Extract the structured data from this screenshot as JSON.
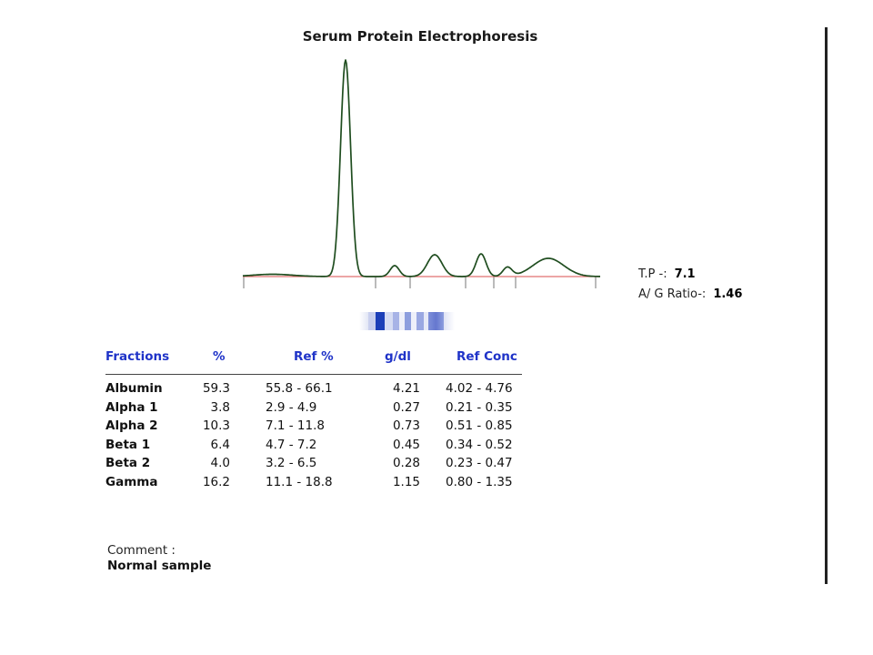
{
  "report": {
    "title": "Serum Protein Electrophoresis",
    "total_protein_label": "T.P -:",
    "total_protein_value": "7.1",
    "ag_ratio_label": "A/ G Ratio-:",
    "ag_ratio_value": "1.46",
    "comment_label": "Comment :",
    "comment_text": "Normal sample"
  },
  "table": {
    "headers": [
      "Fractions",
      "%",
      "Ref %",
      "g/dl",
      "Ref Conc"
    ],
    "rows": [
      [
        "Albumin",
        "59.3",
        "55.8 - 66.1",
        "4.21",
        "4.02 - 4.76"
      ],
      [
        "Alpha 1",
        "3.8",
        "2.9 -  4.9",
        "0.27",
        "0.21 - 0.35"
      ],
      [
        "Alpha 2",
        "10.3",
        "7.1 - 11.8",
        "0.73",
        "0.51 - 0.85"
      ],
      [
        "Beta 1",
        "6.4",
        "4.7 -  7.2",
        "0.45",
        "0.34 - 0.52"
      ],
      [
        "Beta 2",
        "4.0",
        "3.2 -  6.5",
        "0.28",
        "0.23 - 0.47"
      ],
      [
        "Gamma",
        "16.2",
        "11.1 - 18.8",
        "1.15",
        "0.80 - 1.35"
      ]
    ]
  },
  "colors": {
    "header_text": "#1f33c8",
    "trace": "#1f4d1f",
    "baseline": "#e07070",
    "strip_band": "#1c3fb8"
  }
}
